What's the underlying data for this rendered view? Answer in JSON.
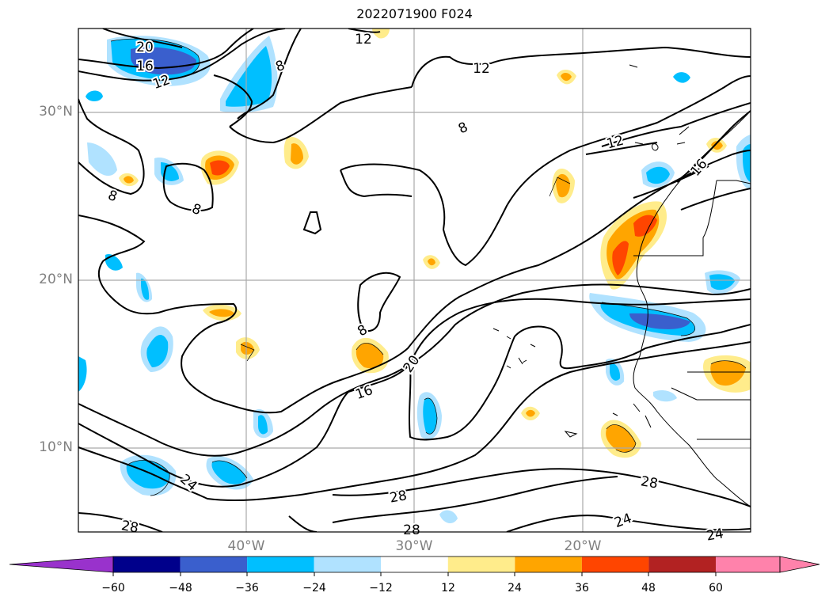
{
  "title": "2022071900 F024",
  "axes": {
    "lat_labels": [
      "30°N",
      "20°N",
      "10°N"
    ],
    "lon_labels": [
      "40°W",
      "30°W",
      "20°W"
    ]
  },
  "contour_labels": [
    "20",
    "16",
    "12",
    "12",
    "12",
    "8",
    "8",
    "8",
    "8",
    "12",
    "16",
    "8",
    "20",
    "16",
    "28",
    "28",
    "24",
    "24",
    "28",
    "28",
    "24"
  ],
  "colorbar": {
    "ticks": [
      "−60",
      "−48",
      "−36",
      "−24",
      "−12",
      "12",
      "24",
      "36",
      "48",
      "60"
    ],
    "colors": [
      "#9932cc",
      "#00008b",
      "#3a5fcd",
      "#00bfff",
      "#b0e2ff",
      "#ffffff",
      "#ffec8b",
      "#ffa500",
      "#ff4500",
      "#b22222",
      "#ff82ab",
      "#ff82ab"
    ]
  },
  "fill_colors": {
    "neg_light": "#b0e2ff",
    "neg_mid": "#00bfff",
    "neg_strong": "#3a5fcd",
    "pos_light": "#ffec8b",
    "pos_mid": "#ffa500",
    "pos_strong": "#ff4500"
  }
}
